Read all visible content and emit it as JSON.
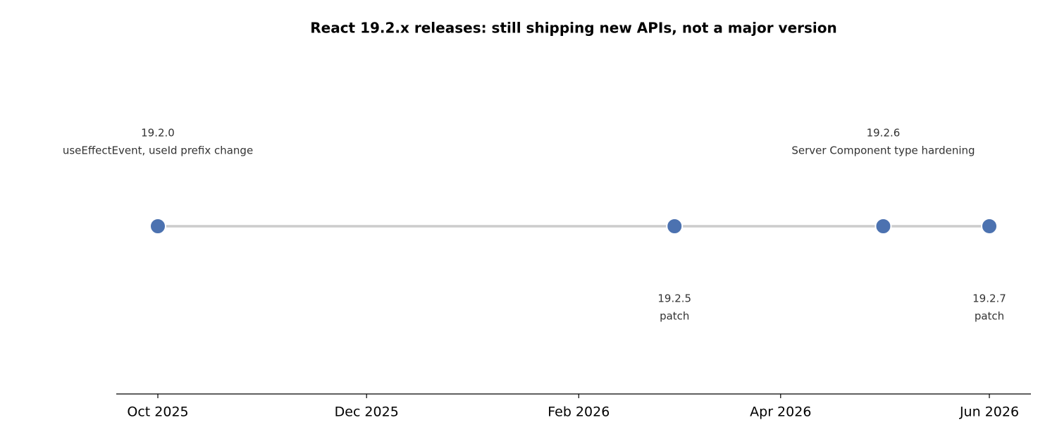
{
  "chart_data": {
    "type": "timeline",
    "title": "React 19.2.x releases: still shipping new APIs, not a major version",
    "x": [
      "2025-10",
      "2026-03",
      "2026-05",
      "2026-06"
    ],
    "versions": [
      "19.2.0",
      "19.2.5",
      "19.2.6",
      "19.2.7"
    ],
    "notes": [
      "useEffectEvent, useId prefix change",
      "patch",
      "Server Component type hardening",
      "patch"
    ],
    "color": "#4c72b0",
    "line_color": "#cccccc",
    "xticks": [
      {
        "value": "2025-10",
        "label": "Oct 2025"
      },
      {
        "value": "2025-12",
        "label": "Dec 2025"
      },
      {
        "value": "2026-02",
        "label": "Feb 2026"
      },
      {
        "value": "2026-04",
        "label": "Apr 2026"
      },
      {
        "value": "2026-06",
        "label": "Jun 2026"
      }
    ]
  }
}
